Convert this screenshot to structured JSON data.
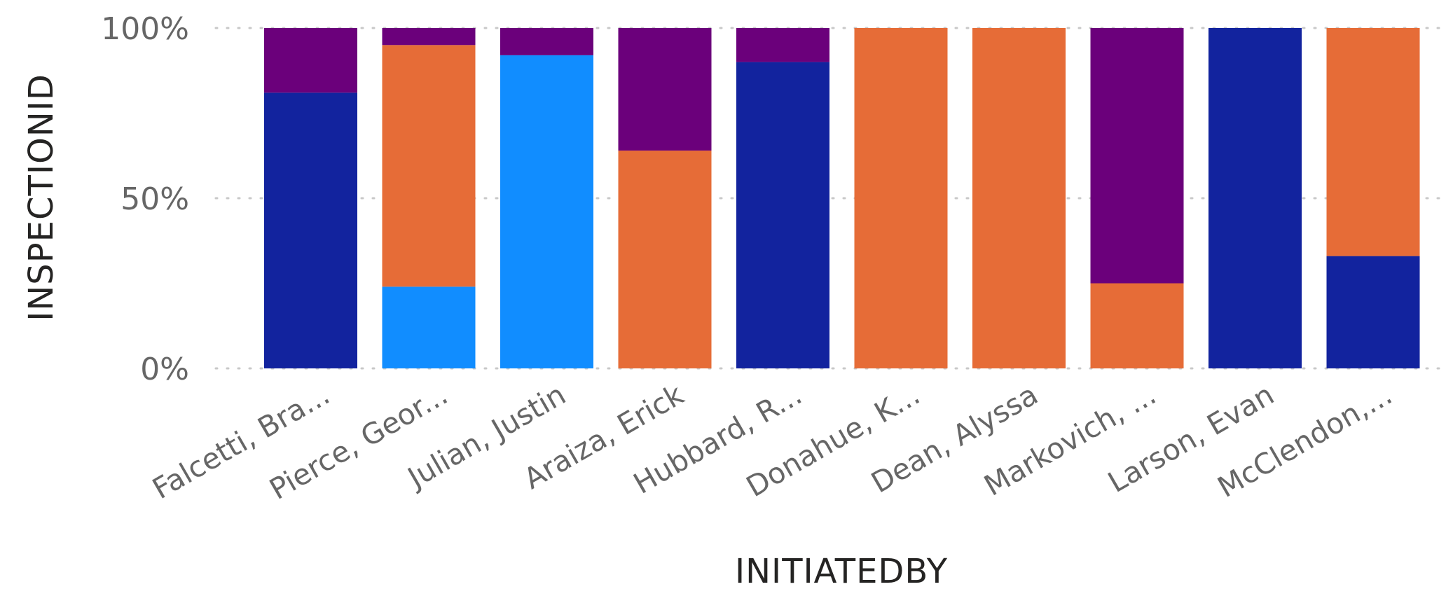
{
  "chart_data": {
    "type": "bar",
    "stacked": true,
    "normalized": true,
    "xlabel": "INITIATEDBY",
    "ylabel": "INSPECTIONID",
    "ylim": [
      0,
      100
    ],
    "yticks": [
      "0%",
      "50%",
      "100%"
    ],
    "grid": true,
    "categories": [
      "Falcetti, Bra...",
      "Pierce, Geor...",
      "Julian, Justin",
      "Araiza, Erick",
      "Hubbard, R...",
      "Donahue, K...",
      "Dean, Alyssa",
      "Markovich, ...",
      "Larson, Evan",
      "McClendon,..."
    ],
    "series": [
      {
        "color": "#12239E",
        "values": [
          81,
          0,
          0,
          0,
          90,
          0,
          0,
          0,
          100,
          33
        ]
      },
      {
        "color": "#118DFF",
        "values": [
          0,
          24,
          92,
          0,
          0,
          0,
          0,
          0,
          0,
          0
        ]
      },
      {
        "color": "#E66C37",
        "values": [
          0,
          71,
          0,
          64,
          0,
          100,
          100,
          25,
          0,
          67
        ]
      },
      {
        "color": "#6B007B",
        "values": [
          19,
          5,
          8,
          36,
          10,
          0,
          0,
          75,
          0,
          0
        ]
      }
    ]
  }
}
